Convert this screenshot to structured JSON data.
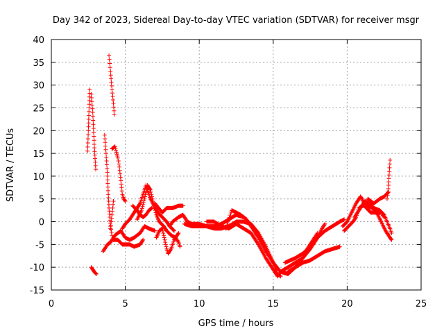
{
  "chart_data": {
    "type": "scatter",
    "title": "Day 342 of 2023, Sidereal Day-to-day VTEC variation (SDTVAR) for receiver msgr",
    "xlabel": "GPS time / hours",
    "ylabel": "SDTVAR / TECUs",
    "xlim": [
      0,
      25
    ],
    "ylim": [
      -15,
      40
    ],
    "xticks": [
      0,
      5,
      10,
      15,
      20,
      25
    ],
    "yticks": [
      -15,
      -10,
      -5,
      0,
      5,
      10,
      15,
      20,
      25,
      30,
      35,
      40
    ],
    "grid": true,
    "marker": "+",
    "series": [
      {
        "name": "SDTVAR",
        "color": "#ff0000",
        "tracks": [
          [
            [
              2.45,
              15.5
            ],
            [
              2.5,
              20
            ],
            [
              2.55,
              25
            ],
            [
              2.6,
              29
            ]
          ],
          [
            [
              2.7,
              28
            ],
            [
              2.8,
              24
            ],
            [
              2.9,
              17
            ],
            [
              3.0,
              11.5
            ]
          ],
          [
            [
              2.7,
              -10
            ],
            [
              2.8,
              -10.5
            ],
            [
              2.9,
              -11
            ],
            [
              3.05,
              -11.5
            ]
          ],
          [
            [
              3.5,
              -6.5
            ],
            [
              3.8,
              -5
            ],
            [
              4.0,
              -4.5
            ],
            [
              4.3,
              -3
            ],
            [
              4.7,
              -2
            ],
            [
              5.0,
              -3.5
            ],
            [
              5.3,
              -4
            ],
            [
              5.6,
              -3.5
            ],
            [
              6.0,
              -2.5
            ],
            [
              6.3,
              -1
            ],
            [
              6.6,
              -1.5
            ],
            [
              7.0,
              -2
            ]
          ],
          [
            [
              3.6,
              19
            ],
            [
              3.7,
              15
            ],
            [
              3.8,
              10
            ],
            [
              3.85,
              6
            ],
            [
              3.9,
              3
            ],
            [
              3.95,
              1
            ],
            [
              4.0,
              -1
            ],
            [
              4.1,
              -3
            ]
          ],
          [
            [
              3.9,
              36.5
            ],
            [
              4.0,
              33
            ],
            [
              4.1,
              29
            ],
            [
              4.2,
              26
            ],
            [
              4.25,
              23.5
            ]
          ],
          [
            [
              4.1,
              16
            ],
            [
              4.3,
              16.5
            ],
            [
              4.5,
              14
            ],
            [
              4.6,
              12
            ],
            [
              4.7,
              9
            ],
            [
              4.8,
              6
            ],
            [
              4.9,
              5
            ],
            [
              5.0,
              4.5
            ]
          ],
          [
            [
              4.0,
              -1.5
            ],
            [
              4.1,
              1.5
            ],
            [
              4.2,
              4.5
            ]
          ],
          [
            [
              4.2,
              -4
            ],
            [
              4.5,
              -4
            ],
            [
              4.8,
              -5
            ],
            [
              5.0,
              -5
            ],
            [
              5.3,
              -5
            ],
            [
              5.6,
              -5.5
            ],
            [
              6.0,
              -5
            ],
            [
              6.2,
              -4
            ]
          ],
          [
            [
              4.8,
              -1.5
            ],
            [
              5.0,
              -0.5
            ],
            [
              5.3,
              0.5
            ],
            [
              5.6,
              2
            ],
            [
              5.8,
              3
            ],
            [
              6.0,
              4
            ],
            [
              6.2,
              6
            ],
            [
              6.4,
              8
            ],
            [
              6.5,
              7
            ],
            [
              6.7,
              5
            ],
            [
              6.8,
              4.5
            ],
            [
              7.0,
              3
            ],
            [
              7.2,
              2
            ],
            [
              7.5,
              1
            ],
            [
              7.8,
              0
            ],
            [
              8.0,
              -1
            ],
            [
              8.3,
              -2
            ]
          ],
          [
            [
              5.5,
              3.5
            ],
            [
              5.8,
              2.5
            ],
            [
              6.0,
              1.5
            ],
            [
              6.2,
              1
            ],
            [
              6.4,
              1.5
            ],
            [
              6.6,
              2.5
            ],
            [
              6.8,
              3
            ]
          ],
          [
            [
              5.8,
              0.5
            ],
            [
              6.1,
              2.5
            ],
            [
              6.3,
              5
            ],
            [
              6.5,
              8
            ],
            [
              6.7,
              7
            ],
            [
              6.9,
              4
            ],
            [
              7.1,
              1.5
            ],
            [
              7.3,
              0
            ],
            [
              7.6,
              -1
            ],
            [
              7.8,
              -2
            ],
            [
              8.1,
              -3
            ],
            [
              8.4,
              -3.5
            ],
            [
              8.6,
              -4.5
            ],
            [
              8.7,
              -5.5
            ]
          ],
          [
            [
              7.1,
              -3.5
            ],
            [
              7.3,
              -2
            ],
            [
              7.5,
              -1.5
            ],
            [
              7.6,
              -3
            ],
            [
              7.7,
              -4.5
            ],
            [
              7.8,
              -6
            ],
            [
              7.9,
              -7
            ],
            [
              8.1,
              -6
            ],
            [
              8.3,
              -4
            ],
            [
              8.5,
              -3
            ],
            [
              8.6,
              -2.5
            ]
          ],
          [
            [
              7.0,
              4
            ],
            [
              7.5,
              2
            ],
            [
              7.8,
              3
            ],
            [
              8.2,
              3
            ],
            [
              8.6,
              3.5
            ],
            [
              8.9,
              3.5
            ]
          ],
          [
            [
              8.0,
              -1
            ],
            [
              8.2,
              0
            ],
            [
              8.6,
              1
            ],
            [
              8.9,
              1.5
            ],
            [
              9.2,
              0
            ],
            [
              9.5,
              -0.5
            ],
            [
              10,
              -0.5
            ],
            [
              10.5,
              -1
            ],
            [
              11,
              -1
            ],
            [
              11.5,
              -0.5
            ],
            [
              12,
              0.5
            ],
            [
              12.5,
              1.5
            ],
            [
              13,
              1
            ]
          ],
          [
            [
              9.0,
              -0.5
            ],
            [
              9.5,
              -1
            ],
            [
              10,
              -1
            ],
            [
              10.5,
              -1
            ],
            [
              11,
              -1.5
            ],
            [
              11.5,
              -1.5
            ],
            [
              12,
              -1
            ],
            [
              12.5,
              0
            ],
            [
              13,
              0
            ],
            [
              13.5,
              -0.5
            ],
            [
              14,
              -2.5
            ],
            [
              14.5,
              -5.5
            ],
            [
              15,
              -9
            ],
            [
              15.5,
              -11
            ],
            [
              16,
              -10
            ],
            [
              16.5,
              -9
            ],
            [
              17,
              -8
            ],
            [
              17.5,
              -6
            ],
            [
              18,
              -3.5
            ],
            [
              18.3,
              -1.5
            ],
            [
              18.5,
              -0.5
            ]
          ],
          [
            [
              10.5,
              0
            ],
            [
              11,
              0
            ],
            [
              11.5,
              -1
            ],
            [
              12,
              -1.5
            ],
            [
              12.5,
              -0.5
            ],
            [
              13,
              -1.5
            ],
            [
              13.5,
              -2.5
            ],
            [
              14,
              -5
            ],
            [
              14.5,
              -8
            ],
            [
              15,
              -10.5
            ],
            [
              15.3,
              -12
            ],
            [
              15.5,
              -11
            ],
            [
              16,
              -11.5
            ],
            [
              16.5,
              -10
            ],
            [
              17,
              -8
            ],
            [
              17.3,
              -6
            ],
            [
              17.5,
              -5
            ],
            [
              17.8,
              -3.5
            ],
            [
              18,
              -2.5
            ]
          ],
          [
            [
              11.8,
              -1.5
            ],
            [
              12.2,
              2.5
            ],
            [
              12.5,
              2
            ],
            [
              12.8,
              1.5
            ],
            [
              13.2,
              0.5
            ],
            [
              13.5,
              -1
            ],
            [
              14,
              -3.5
            ],
            [
              14.5,
              -6.5
            ],
            [
              15,
              -9
            ],
            [
              15.3,
              -11.5
            ],
            [
              15.5,
              -12
            ]
          ],
          [
            [
              16,
              -11
            ],
            [
              16.5,
              -10
            ],
            [
              17,
              -9
            ],
            [
              17.5,
              -8.5
            ],
            [
              18,
              -7.5
            ],
            [
              18.5,
              -6.5
            ],
            [
              19,
              -6
            ],
            [
              19.5,
              -5.5
            ]
          ],
          [
            [
              15.8,
              -9
            ],
            [
              16.5,
              -8
            ],
            [
              17.0,
              -7
            ],
            [
              17.5,
              -5.5
            ],
            [
              18.0,
              -3.5
            ],
            [
              18.5,
              -2
            ],
            [
              19.0,
              -1
            ],
            [
              19.5,
              0
            ],
            [
              19.8,
              0.5
            ]
          ],
          [
            [
              19.7,
              -1
            ],
            [
              20,
              0
            ],
            [
              20.3,
              2
            ],
            [
              20.6,
              4
            ],
            [
              20.9,
              5.5
            ],
            [
              21,
              5
            ],
            [
              21.3,
              3
            ],
            [
              21.6,
              2
            ],
            [
              22,
              2
            ],
            [
              22.3,
              2
            ],
            [
              22.5,
              1
            ]
          ],
          [
            [
              19.8,
              -2
            ],
            [
              20.1,
              -1
            ],
            [
              20.4,
              0
            ],
            [
              20.6,
              1
            ],
            [
              20.8,
              3
            ],
            [
              21,
              3.5
            ],
            [
              21.3,
              3.5
            ],
            [
              21.7,
              3
            ],
            [
              22,
              2
            ],
            [
              22.3,
              0
            ],
            [
              22.6,
              -2
            ],
            [
              22.9,
              -3.5
            ],
            [
              23,
              -4
            ]
          ],
          [
            [
              20.5,
              1
            ],
            [
              20.9,
              3
            ],
            [
              21.2,
              4.5
            ],
            [
              21.5,
              4
            ],
            [
              21.8,
              3
            ],
            [
              22.2,
              2.5
            ],
            [
              22.5,
              1.5
            ],
            [
              22.7,
              0
            ],
            [
              22.9,
              -1.5
            ],
            [
              23,
              -2.5
            ]
          ],
          [
            [
              21.4,
              5
            ],
            [
              21.8,
              4
            ],
            [
              22.2,
              5
            ],
            [
              22.5,
              5.5
            ],
            [
              22.8,
              6.5
            ]
          ],
          [
            [
              22.7,
              5
            ],
            [
              22.8,
              8
            ],
            [
              22.85,
              11
            ],
            [
              22.9,
              13.5
            ]
          ]
        ]
      }
    ]
  }
}
